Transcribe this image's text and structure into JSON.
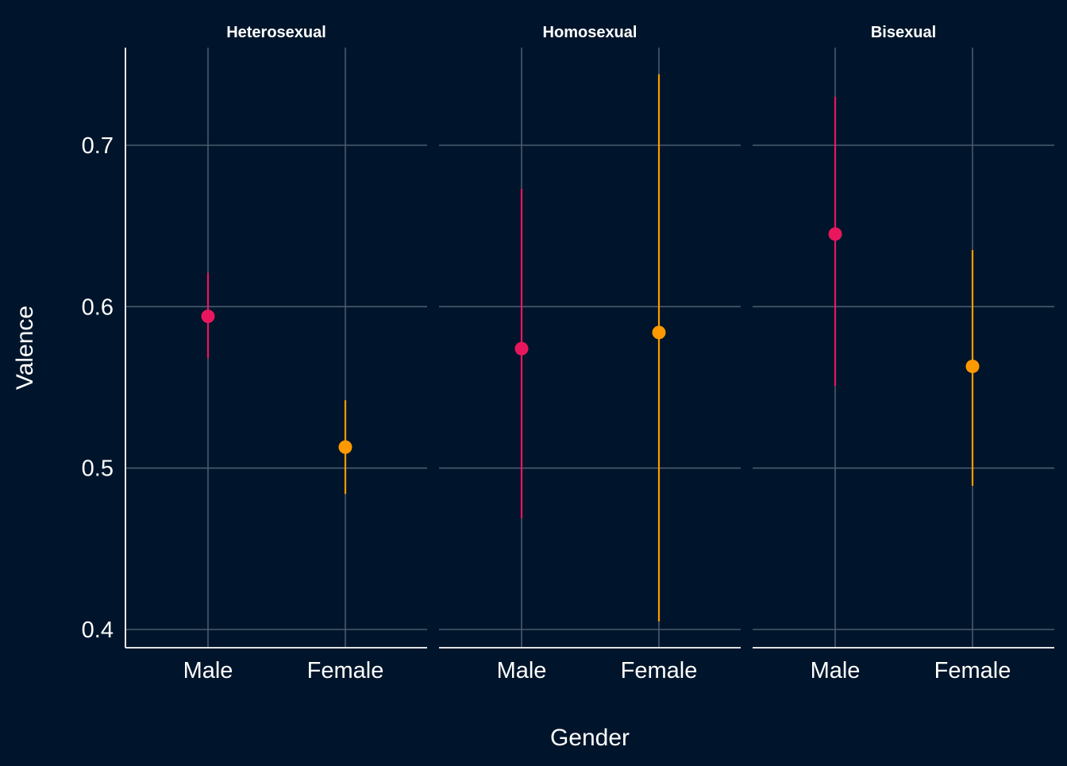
{
  "chart_data": {
    "type": "scatter",
    "subtype": "pointrange",
    "xlabel": "Gender",
    "ylabel": "Valence",
    "ylim": [
      0.39,
      0.76
    ],
    "yticks": [
      0.4,
      0.5,
      0.6,
      0.7
    ],
    "ytick_labels": [
      "0.4",
      "0.5",
      "0.6",
      "0.7"
    ],
    "categories": [
      "Male",
      "Female"
    ],
    "grid": true,
    "legend": "none",
    "colors": {
      "background": "#00152b",
      "grid": "#4a5a6e",
      "axis": "#ffffff",
      "text": "#ffffff",
      "Male": "#e8175d",
      "Female": "#ff9900"
    },
    "panels": [
      {
        "title": "Heterosexual",
        "points": [
          {
            "x": "Male",
            "y": 0.594,
            "ymin": 0.568,
            "ymax": 0.621
          },
          {
            "x": "Female",
            "y": 0.513,
            "ymin": 0.484,
            "ymax": 0.542
          }
        ]
      },
      {
        "title": "Homosexual",
        "points": [
          {
            "x": "Male",
            "y": 0.574,
            "ymin": 0.469,
            "ymax": 0.673
          },
          {
            "x": "Female",
            "y": 0.584,
            "ymin": 0.405,
            "ymax": 0.744
          }
        ]
      },
      {
        "title": "Bisexual",
        "points": [
          {
            "x": "Male",
            "y": 0.645,
            "ymin": 0.551,
            "ymax": 0.73
          },
          {
            "x": "Female",
            "y": 0.563,
            "ymin": 0.489,
            "ymax": 0.635
          }
        ]
      }
    ]
  }
}
